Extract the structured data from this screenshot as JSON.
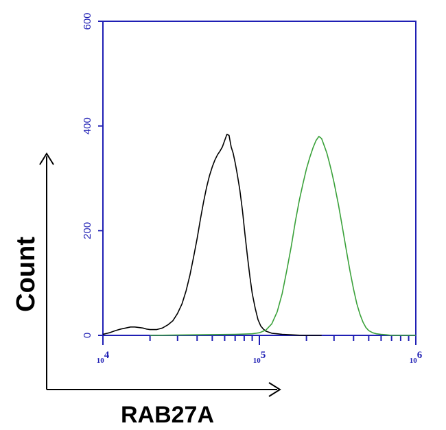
{
  "chart_data": {
    "type": "line",
    "title": "",
    "xlabel": "RAB27A",
    "ylabel": "Count",
    "x_scale": "log",
    "xlim": [
      10000,
      1000000
    ],
    "ylim": [
      0,
      600
    ],
    "x_ticks": [
      {
        "value": 10000,
        "base": "10",
        "exp": "4"
      },
      {
        "value": 100000,
        "base": "10",
        "exp": "5"
      },
      {
        "value": 1000000,
        "base": "10",
        "exp": "6"
      }
    ],
    "y_ticks": [
      "0",
      "200",
      "400",
      "600"
    ],
    "grid": false,
    "legend": "none",
    "axis_color": "#1f1fb4",
    "series": [
      {
        "color": "#000000",
        "x": [
          10000,
          11000,
          12000,
          13000,
          14000,
          15000,
          16000,
          17000,
          18000,
          19000,
          20000,
          22000,
          24000,
          26000,
          28000,
          30000,
          32000,
          34000,
          36000,
          38000,
          40000,
          42000,
          44000,
          46000,
          48000,
          50000,
          52000,
          54000,
          56000,
          58000,
          60000,
          62000,
          64000,
          66000,
          68000,
          70000,
          72000,
          75000,
          78000,
          81000,
          84000,
          87000,
          90000,
          94000,
          98000,
          102000,
          106000,
          110000,
          115000,
          120000,
          130000,
          140000,
          160000,
          190000,
          220000,
          250000
        ],
        "values": [
          2,
          5,
          9,
          12,
          14,
          16,
          16,
          15,
          14,
          12,
          11,
          11,
          14,
          20,
          28,
          42,
          60,
          85,
          115,
          150,
          185,
          222,
          255,
          283,
          305,
          322,
          335,
          345,
          352,
          360,
          372,
          384,
          382,
          360,
          348,
          330,
          310,
          278,
          238,
          192,
          150,
          112,
          80,
          52,
          30,
          18,
          12,
          8,
          6,
          4,
          3,
          2,
          1,
          0,
          0,
          0
        ]
      },
      {
        "color": "#3aa13a",
        "x": [
          20000,
          40000,
          70000,
          90000,
          100000,
          110000,
          120000,
          130000,
          140000,
          150000,
          160000,
          170000,
          180000,
          190000,
          200000,
          210000,
          220000,
          230000,
          240000,
          250000,
          260000,
          270000,
          280000,
          290000,
          300000,
          320000,
          340000,
          360000,
          380000,
          400000,
          420000,
          440000,
          460000,
          480000,
          500000,
          530000,
          560000,
          600000,
          650000,
          700000,
          800000,
          1000000
        ],
        "values": [
          0,
          1,
          2,
          3,
          5,
          10,
          22,
          45,
          80,
          125,
          170,
          218,
          258,
          290,
          318,
          340,
          358,
          372,
          380,
          376,
          362,
          348,
          330,
          312,
          292,
          250,
          205,
          162,
          122,
          88,
          60,
          40,
          25,
          15,
          9,
          5,
          3,
          2,
          1,
          0,
          0,
          0
        ]
      }
    ]
  }
}
